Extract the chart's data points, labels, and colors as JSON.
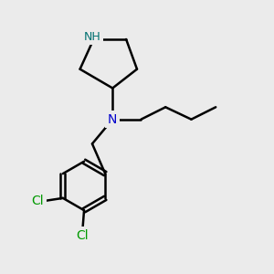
{
  "background_color": "#ebebeb",
  "bond_color": "#000000",
  "N_color": "#0000cc",
  "NH_color": "#007070",
  "Cl_color": "#009900",
  "line_width": 1.8,
  "figsize": [
    3.0,
    3.0
  ],
  "dpi": 100,
  "xlim": [
    0,
    10
  ],
  "ylim": [
    0,
    10
  ]
}
